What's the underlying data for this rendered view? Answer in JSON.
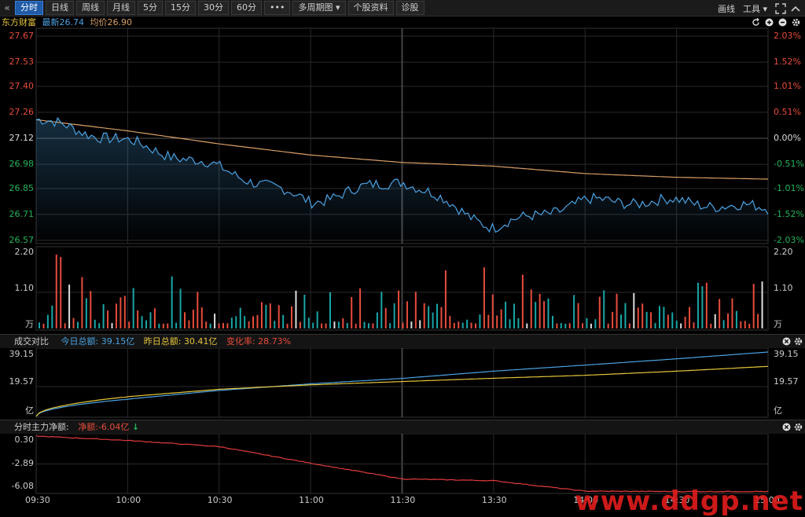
{
  "toolbar": {
    "back_icon": "chevron-left-icon",
    "tabs": [
      "分时",
      "日线",
      "周线",
      "月线",
      "5分",
      "15分",
      "30分",
      "60分",
      "•••",
      "多周期图 ▾",
      "个股资料",
      "诊股"
    ],
    "right": [
      "画线",
      "工具 ▾"
    ]
  },
  "quote": {
    "name": "东方财富",
    "latest_label": "最新26.74",
    "avg_label": "均价26.90"
  },
  "price_axis": {
    "left": [
      "27.67",
      "27.53",
      "27.40",
      "27.26",
      "27.12",
      "26.98",
      "26.85",
      "26.71",
      "26.57"
    ],
    "right": [
      "2.03%",
      "1.52%",
      "1.01%",
      "0.51%",
      "0.00%",
      "-0.51%",
      "-1.01%",
      "-1.52%",
      "-2.03%"
    ],
    "levels": [
      27.67,
      27.53,
      27.4,
      27.26,
      27.12,
      26.98,
      26.85,
      26.71,
      26.57
    ]
  },
  "volume_axis": {
    "labels": [
      "2.20",
      "1.10",
      "万"
    ],
    "max": 2.2
  },
  "turnover_panel": {
    "title": "成交对比",
    "today": "今日总额: 39.15亿",
    "yesterday": "昨日总额: 30.41亿",
    "change": "变化率: 28.73%",
    "axis": [
      "39.15",
      "19.57",
      "亿"
    ],
    "max": 39.15
  },
  "flow_panel": {
    "title": "分时主力净额:",
    "net": "净额:-6.04亿",
    "axis": [
      "0.30",
      "-2.89",
      "-6.08"
    ],
    "min": -6.08,
    "max": 0.3
  },
  "time_axis": [
    "09:30",
    "10:00",
    "10:30",
    "11:00",
    "11:30",
    "13:30",
    "14:00",
    "14:30",
    "15:00"
  ],
  "watermark": "www.ddgp.net",
  "colors": {
    "price": "#4ba3e3",
    "avg": "#d9a066",
    "today": "#4ba3e3",
    "yesterday": "#e6c63a",
    "up": "#e74c3c",
    "down": "#1aa6a6",
    "flow": "#e23b3b",
    "green": "#24b35a",
    "grid": "#2a2a2a",
    "watermark": "#e31c1c"
  },
  "chart_data": [
    {
      "type": "line",
      "title": "",
      "xlabel": "",
      "ylabel": "",
      "ylim": [
        26.57,
        27.67
      ],
      "x": [
        "09:30",
        "10:00",
        "10:30",
        "11:00",
        "11:30",
        "13:30",
        "14:00",
        "14:30",
        "15:00"
      ],
      "series": [
        {
          "name": "最新",
          "values": [
            27.22,
            27.1,
            26.96,
            26.78,
            26.9,
            26.64,
            26.78,
            26.78,
            26.74
          ]
        },
        {
          "name": "均价",
          "values": [
            27.22,
            27.16,
            27.09,
            27.03,
            26.99,
            26.97,
            26.93,
            26.91,
            26.9
          ]
        }
      ]
    },
    {
      "type": "line",
      "title": "",
      "xlabel": "",
      "ylabel": "",
      "ylim": [
        0,
        39.15
      ],
      "x": [
        "09:30",
        "10:00",
        "10:30",
        "11:00",
        "11:30",
        "13:30",
        "14:00",
        "14:30",
        "15:00"
      ],
      "series": [
        {
          "name": "今日总额",
          "values": [
            0,
            10.5,
            15.8,
            19.8,
            23.1,
            27.5,
            31.2,
            35.0,
            39.15
          ]
        },
        {
          "name": "昨日总额",
          "values": [
            0,
            12.0,
            16.5,
            19.2,
            21.2,
            23.2,
            25.0,
            27.5,
            30.41
          ]
        }
      ]
    },
    {
      "type": "line",
      "title": "",
      "xlabel": "",
      "ylabel": "",
      "ylim": [
        -6.08,
        0.3
      ],
      "x": [
        "09:30",
        "10:00",
        "10:30",
        "11:00",
        "11:30",
        "13:30",
        "14:00",
        "14:30",
        "15:00"
      ],
      "series": [
        {
          "name": "净额",
          "values": [
            0.3,
            -0.2,
            -0.9,
            -2.8,
            -4.6,
            -4.8,
            -6.0,
            -6.04,
            -6.04
          ]
        }
      ]
    }
  ]
}
